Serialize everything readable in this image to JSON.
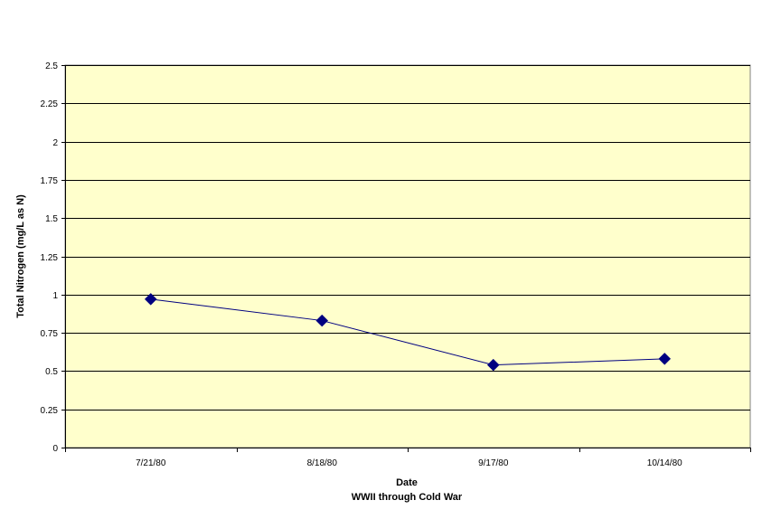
{
  "chart_data": {
    "type": "line",
    "title": "",
    "xlabel": "Date",
    "xsublabel": "WWII through Cold War",
    "ylabel": "Total Nitrogen (mg/L as N)",
    "ylim": [
      0,
      2.5
    ],
    "yticks": [
      "0",
      "0.25",
      "0.5",
      "0.75",
      "1",
      "1.25",
      "1.5",
      "1.75",
      "2",
      "2.25",
      "2.5"
    ],
    "categories": [
      "7/21/80",
      "8/18/80",
      "9/17/80",
      "10/14/80"
    ],
    "series": [
      {
        "values": [
          0.97,
          0.83,
          0.54,
          0.58
        ]
      }
    ],
    "grid": true,
    "colors": {
      "plot_background": "#ffffcc",
      "line": "#000080",
      "marker": "#000080",
      "grid": "#000000"
    }
  }
}
